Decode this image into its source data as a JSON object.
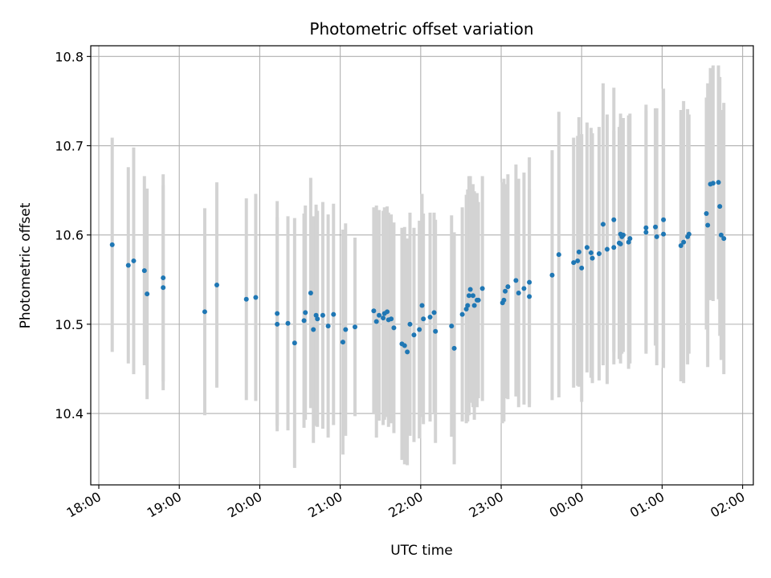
{
  "chart_data": {
    "type": "scatter",
    "title": "Photometric offset variation",
    "xlabel": "UTC time",
    "ylabel": "Photometric offset",
    "x_unit": "hours",
    "xlim": [
      "17:54",
      "02:08"
    ],
    "ylim": [
      10.32,
      10.812
    ],
    "grid": true,
    "x_ticks": [
      "18:00",
      "19:00",
      "20:00",
      "21:00",
      "22:00",
      "23:00",
      "00:00",
      "01:00",
      "02:00"
    ],
    "y_ticks": [
      10.4,
      10.5,
      10.6,
      10.7,
      10.8
    ],
    "y_tick_labels": [
      "10.4",
      "10.5",
      "10.6",
      "10.7",
      "10.8"
    ],
    "colors": {
      "points": "#1f77b4",
      "errorbars": "#d3d3d3",
      "grid": "#b0b0b0"
    },
    "series": [
      {
        "x": [
          "18:10",
          "18:22",
          "18:26",
          "18:34",
          "18:36",
          "18:48",
          "18:48",
          "19:19",
          "19:28",
          "19:50",
          "19:57",
          "20:13",
          "20:13",
          "20:21",
          "20:26",
          "20:33",
          "20:34",
          "20:38",
          "20:40",
          "20:42",
          "20:43",
          "20:47",
          "20:51",
          "20:55",
          "21:02",
          "21:04",
          "21:11",
          "21:25",
          "21:27",
          "21:29",
          "21:32",
          "21:33",
          "21:35",
          "21:36",
          "21:38",
          "21:40",
          "21:46",
          "21:48",
          "21:50",
          "21:52",
          "21:55",
          "21:59",
          "22:01",
          "22:02",
          "22:07",
          "22:10",
          "22:11",
          "22:23",
          "22:25",
          "22:31",
          "22:34",
          "22:35",
          "22:36",
          "22:37",
          "22:39",
          "22:40",
          "22:42",
          "22:43",
          "22:46",
          "23:01",
          "23:02",
          "23:03",
          "23:05",
          "23:11",
          "23:13",
          "23:17",
          "23:21",
          "23:21",
          "23:38",
          "23:43",
          "23:54",
          "23:57",
          "23:58",
          "00:00",
          "00:04",
          "00:07",
          "00:08",
          "00:13",
          "00:16",
          "00:19",
          "00:24",
          "00:24",
          "00:28",
          "00:29",
          "00:29",
          "00:30",
          "00:31",
          "00:35",
          "00:36",
          "00:48",
          "00:48",
          "00:55",
          "00:56",
          "01:01",
          "01:01",
          "01:14",
          "01:16",
          "01:19",
          "01:20",
          "01:33",
          "01:34",
          "01:36",
          "01:38",
          "01:42",
          "01:43",
          "01:44",
          "01:46"
        ],
        "y": [
          10.589,
          10.566,
          10.571,
          10.56,
          10.534,
          10.541,
          10.552,
          10.514,
          10.544,
          10.528,
          10.53,
          10.512,
          10.5,
          10.501,
          10.479,
          10.504,
          10.513,
          10.535,
          10.494,
          10.51,
          10.506,
          10.51,
          10.498,
          10.511,
          10.48,
          10.494,
          10.497,
          10.515,
          10.503,
          10.51,
          10.507,
          10.512,
          10.514,
          10.505,
          10.506,
          10.496,
          10.478,
          10.476,
          10.469,
          10.5,
          10.488,
          10.494,
          10.521,
          10.506,
          10.508,
          10.513,
          10.492,
          10.498,
          10.473,
          10.511,
          10.517,
          10.521,
          10.532,
          10.539,
          10.532,
          10.521,
          10.527,
          10.527,
          10.54,
          10.524,
          10.527,
          10.537,
          10.542,
          10.549,
          10.535,
          10.54,
          10.531,
          10.547,
          10.555,
          10.578,
          10.569,
          10.571,
          10.581,
          10.563,
          10.586,
          10.58,
          10.574,
          10.579,
          10.612,
          10.584,
          10.617,
          10.586,
          10.591,
          10.59,
          10.601,
          10.598,
          10.6,
          10.592,
          10.596,
          10.608,
          10.603,
          10.609,
          10.598,
          10.601,
          10.617,
          10.588,
          10.592,
          10.598,
          10.601,
          10.624,
          10.611,
          10.657,
          10.658,
          10.659,
          10.632,
          10.6,
          10.596
        ],
        "err": [
          0.12,
          0.11,
          0.127,
          0.106,
          0.118,
          0.115,
          0.116,
          0.116,
          0.115,
          0.113,
          0.116,
          0.126,
          0.12,
          0.12,
          0.14,
          0.12,
          0.12,
          0.129,
          0.127,
          0.124,
          0.121,
          0.127,
          0.125,
          0.124,
          0.126,
          0.119,
          0.1,
          0.116,
          0.13,
          0.118,
          0.12,
          0.119,
          0.118,
          0.12,
          0.117,
          0.118,
          0.13,
          0.133,
          0.127,
          0.125,
          0.12,
          0.122,
          0.125,
          0.118,
          0.117,
          0.112,
          0.125,
          0.124,
          0.13,
          0.12,
          0.128,
          0.13,
          0.134,
          0.127,
          0.125,
          0.128,
          0.12,
          0.11,
          0.126,
          0.135,
          0.136,
          0.12,
          0.126,
          0.13,
          0.128,
          0.13,
          0.12,
          0.14,
          0.14,
          0.16,
          0.14,
          0.14,
          0.151,
          0.15,
          0.14,
          0.14,
          0.14,
          0.142,
          0.158,
          0.151,
          0.148,
          0.131,
          0.13,
          0.134,
          0.135,
          0.131,
          0.131,
          0.142,
          0.14,
          0.138,
          0.136,
          0.133,
          0.144,
          0.15,
          0.147,
          0.152,
          0.158,
          0.143,
          0.134,
          0.13,
          0.159,
          0.13,
          0.132,
          0.131,
          0.145,
          0.14,
          0.152
        ]
      }
    ]
  }
}
